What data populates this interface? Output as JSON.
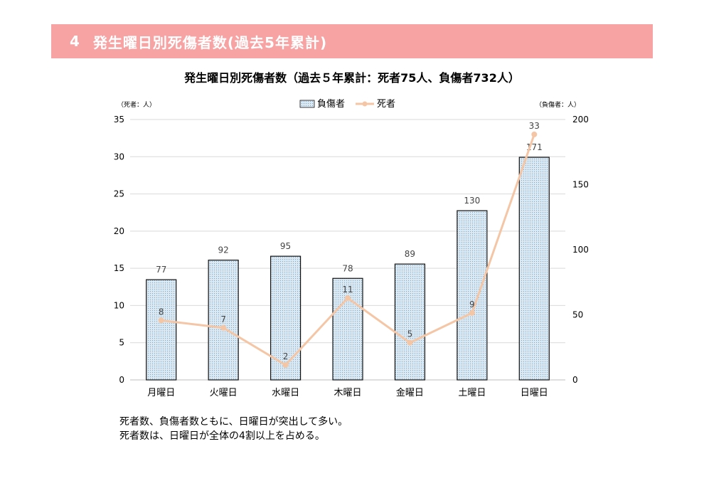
{
  "header": {
    "number": "4",
    "title": "発生曜日別死傷者数(過去5年累計)"
  },
  "chart_data": {
    "type": "bar+line",
    "title": "発生曜日別死傷者数（過去５年累計：死者75人、負傷者732人）",
    "categories": [
      "月曜日",
      "火曜日",
      "水曜日",
      "木曜日",
      "金曜日",
      "土曜日",
      "日曜日"
    ],
    "series": [
      {
        "name": "負傷者",
        "type": "bar",
        "axis": "right",
        "values": [
          77,
          92,
          95,
          78,
          89,
          130,
          171
        ]
      },
      {
        "name": "死者",
        "type": "line",
        "axis": "left",
        "values": [
          8,
          7,
          2,
          11,
          5,
          9,
          33
        ]
      }
    ],
    "y_left": {
      "label": "（死者：人）",
      "range": [
        0,
        35
      ],
      "ticks": [
        "0",
        "5",
        "10",
        "15",
        "20",
        "25",
        "30",
        "35"
      ]
    },
    "y_right": {
      "label": "（負傷者：人）",
      "range": [
        0,
        200
      ],
      "ticks": [
        "0",
        "50",
        "100",
        "150",
        "200"
      ]
    },
    "legend_position": "top-center",
    "grid": true,
    "colors": {
      "bar_fill": "#dce9f2",
      "bar_dots": "#7aa7c9",
      "bar_stroke": "#111111",
      "line": "#f5c6a5",
      "grid": "#d9d9d9"
    }
  },
  "notes": [
    "死者数、負傷者数ともに、日曜日が突出して多い。",
    "死者数は、日曜日が全体の4割以上を占める。"
  ]
}
